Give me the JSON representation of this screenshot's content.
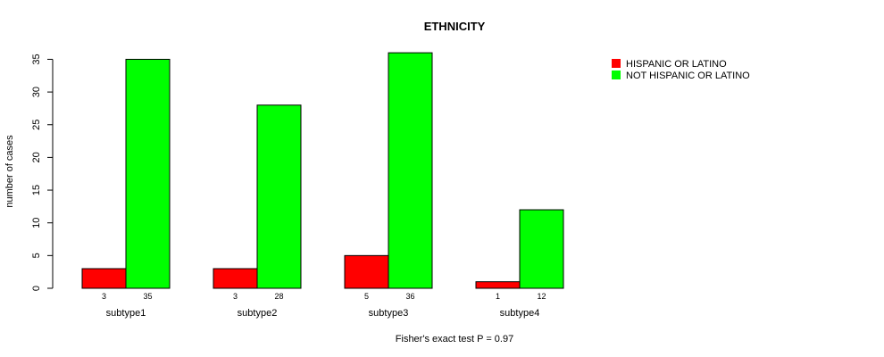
{
  "chart_data": {
    "type": "bar",
    "title": "ETHNICITY",
    "xlabel": "",
    "ylabel": "number of cases",
    "ylim": [
      0,
      35
    ],
    "yticks": [
      0,
      5,
      10,
      15,
      20,
      25,
      30,
      35
    ],
    "categories": [
      "subtype1",
      "subtype2",
      "subtype3",
      "subtype4"
    ],
    "series": [
      {
        "name": "HISPANIC OR LATINO",
        "color": "#ff0000",
        "values": [
          3,
          3,
          5,
          1
        ]
      },
      {
        "name": "NOT HISPANIC OR LATINO",
        "color": "#00ff00",
        "values": [
          35,
          28,
          36,
          12
        ]
      }
    ],
    "legend_position": "top-right",
    "footnote": "Fisher's exact test P = 0.97",
    "grid": false
  }
}
